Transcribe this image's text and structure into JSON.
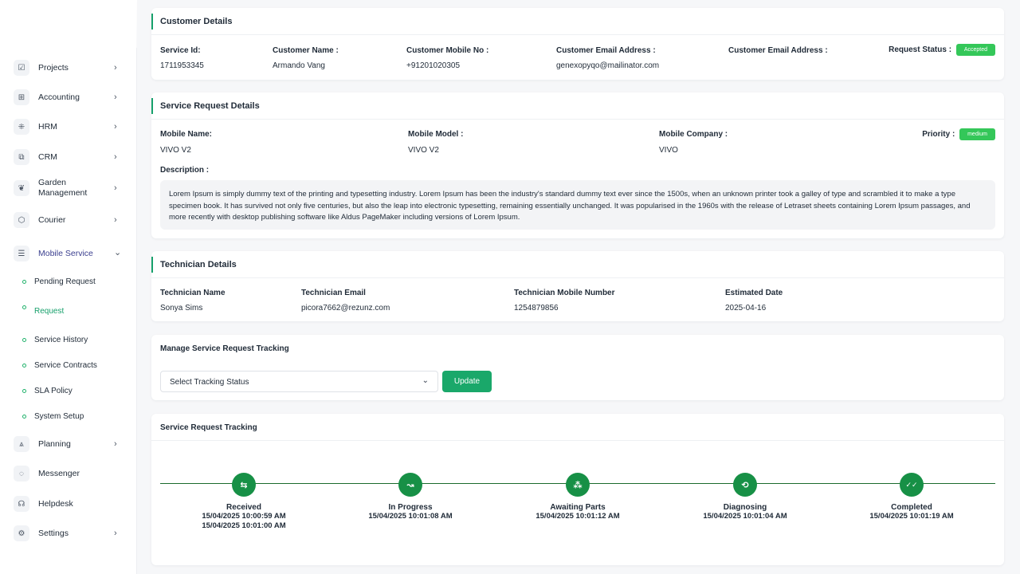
{
  "sidebar": {
    "items": [
      {
        "label": "Projects",
        "icon": "checkbox-icon",
        "glyph": "☑",
        "chevron": "›"
      },
      {
        "label": "Accounting",
        "icon": "grid-icon",
        "glyph": "⊞",
        "chevron": "›"
      },
      {
        "label": "HRM",
        "icon": "users-icon",
        "glyph": "⁜",
        "chevron": "›"
      },
      {
        "label": "CRM",
        "icon": "copy-icon",
        "glyph": "⧉",
        "chevron": "›"
      },
      {
        "label": "Garden Management",
        "icon": "leaf-icon",
        "glyph": "❦",
        "chevron": "›"
      },
      {
        "label": "Courier",
        "icon": "box-icon",
        "glyph": "⬡",
        "chevron": "›"
      },
      {
        "label": "Mobile Service",
        "icon": "menu-icon",
        "glyph": "☰",
        "chevron": "⌄"
      }
    ],
    "sub_items": [
      {
        "label": "Pending Request"
      },
      {
        "label": "Request"
      },
      {
        "label": "Service History"
      },
      {
        "label": "Service Contracts"
      },
      {
        "label": "SLA Policy"
      },
      {
        "label": "System Setup"
      }
    ],
    "bottom_items": [
      {
        "label": "Planning",
        "icon": "planning-icon",
        "glyph": "⩓",
        "chevron": "›"
      },
      {
        "label": "Messenger",
        "icon": "chat-icon",
        "glyph": "◌",
        "chevron": ""
      },
      {
        "label": "Helpdesk",
        "icon": "headset-icon",
        "glyph": "☊",
        "chevron": ""
      },
      {
        "label": "Settings",
        "icon": "gear-icon",
        "glyph": "⚙",
        "chevron": "›"
      }
    ]
  },
  "customer": {
    "title": "Customer Details",
    "service_id_label": "Service Id:",
    "service_id": "1711953345",
    "name_label": "Customer Name :",
    "name": "Armando Vang",
    "mobile_label": "Customer Mobile No :",
    "mobile": "+91201020305",
    "email_label": "Customer Email Address :",
    "email": "genexopyqo@mailinator.com",
    "email2_label": "Customer Email Address :",
    "status_label": "Request Status :",
    "status": "Accepted"
  },
  "service_request": {
    "title": "Service Request Details",
    "mobile_name_label": "Mobile Name:",
    "mobile_name": "VIVO V2",
    "mobile_model_label": "Mobile Model :",
    "mobile_model": "VIVO V2",
    "mobile_company_label": "Mobile Company :",
    "mobile_company": "VIVO",
    "priority_label": "Priority :",
    "priority": "medium",
    "description_label": "Description :",
    "description": "Lorem Ipsum is simply dummy text of the printing and typesetting industry. Lorem Ipsum has been the industry's standard dummy text ever since the 1500s, when an unknown printer took a galley of type and scrambled it to make a type specimen book. It has survived not only five centuries, but also the leap into electronic typesetting, remaining essentially unchanged. It was popularised in the 1960s with the release of Letraset sheets containing Lorem Ipsum passages, and more recently with desktop publishing software like Aldus PageMaker including versions of Lorem Ipsum."
  },
  "technician": {
    "title": "Technician Details",
    "name_label": "Technician Name",
    "name": "Sonya Sims",
    "email_label": "Technician Email",
    "email": "picora7662@rezunz.com",
    "mobile_label": "Technician Mobile Number",
    "mobile": "1254879856",
    "date_label": "Estimated Date",
    "date": "2025-04-16"
  },
  "manage": {
    "title": "Manage Service Request Tracking",
    "select_value": "Select Tracking Status",
    "update_label": "Update"
  },
  "tracking": {
    "title": "Service Request Tracking",
    "steps": [
      {
        "name": "Received",
        "icon": "swap-icon",
        "glyph": "⇆",
        "times": [
          "15/04/2025 10:00:59 AM",
          "15/04/2025 10:01:00 AM"
        ]
      },
      {
        "name": "In Progress",
        "icon": "trend-icon",
        "glyph": "↝",
        "times": [
          "15/04/2025 10:01:08 AM"
        ]
      },
      {
        "name": "Awaiting Parts",
        "icon": "parts-icon",
        "glyph": "⁂",
        "times": [
          "15/04/2025 10:01:12 AM"
        ]
      },
      {
        "name": "Diagnosing",
        "icon": "repeat-icon",
        "glyph": "⟲",
        "times": [
          "15/04/2025 10:01:04 AM"
        ]
      },
      {
        "name": "Completed",
        "icon": "double-check-icon",
        "glyph": "✓✓",
        "times": [
          "15/04/2025 10:01:19 AM"
        ]
      }
    ]
  }
}
